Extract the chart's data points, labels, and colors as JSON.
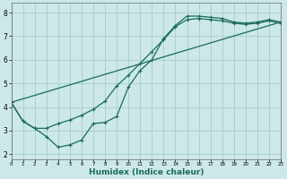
{
  "xlabel": "Humidex (Indice chaleur)",
  "bg_color": "#cce8e8",
  "grid_color": "#aacccc",
  "line_color": "#1a6b5a",
  "line1_x": [
    0,
    1,
    2,
    3,
    4,
    5,
    6,
    7,
    8,
    9,
    10,
    11,
    12,
    13,
    14,
    15,
    16,
    17,
    18,
    19,
    20,
    21,
    22,
    23
  ],
  "line1_y": [
    4.2,
    3.4,
    3.1,
    2.75,
    2.3,
    2.4,
    2.6,
    3.3,
    3.35,
    3.6,
    4.85,
    5.55,
    6.0,
    6.9,
    7.45,
    7.85,
    7.85,
    7.8,
    7.75,
    7.6,
    7.55,
    7.6,
    7.7,
    7.6
  ],
  "line2_x": [
    0,
    23
  ],
  "line2_y": [
    4.2,
    7.6
  ],
  "line3_x": [
    0,
    1,
    2,
    3,
    4,
    5,
    6,
    7,
    8,
    9,
    10,
    11,
    12,
    13,
    14,
    15,
    16,
    17,
    18,
    19,
    20,
    21,
    22,
    23
  ],
  "line3_y": [
    4.2,
    3.4,
    3.1,
    3.1,
    3.3,
    3.45,
    3.65,
    3.9,
    4.25,
    4.9,
    5.35,
    5.85,
    6.35,
    6.85,
    7.4,
    7.7,
    7.75,
    7.7,
    7.65,
    7.55,
    7.5,
    7.55,
    7.65,
    7.55
  ],
  "ylim": [
    1.8,
    8.4
  ],
  "xlim": [
    0,
    23
  ],
  "yticks": [
    2,
    3,
    4,
    5,
    6,
    7,
    8
  ],
  "xticks": [
    0,
    1,
    2,
    3,
    4,
    5,
    6,
    7,
    8,
    9,
    10,
    11,
    12,
    13,
    14,
    15,
    16,
    17,
    18,
    19,
    20,
    21,
    22,
    23
  ],
  "marker": "+",
  "markersize": 3.5,
  "linewidth": 0.9,
  "xlabel_fontsize": 6.5,
  "ytick_fontsize": 5.5,
  "xtick_fontsize": 4.0
}
